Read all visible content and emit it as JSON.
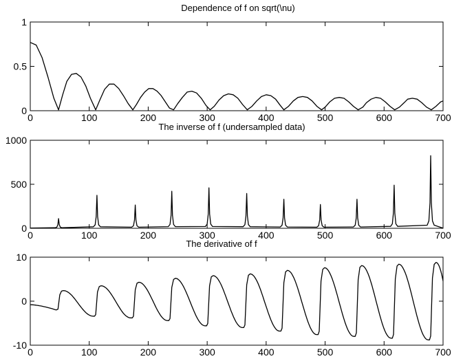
{
  "chart_data": [
    {
      "type": "line",
      "title": "Dependence of f on sqrt(\\nu)",
      "xlabel": "",
      "ylabel": "",
      "xlim": [
        0,
        700
      ],
      "ylim": [
        0,
        1
      ],
      "xticks": [
        0,
        100,
        200,
        300,
        400,
        500,
        600,
        700
      ],
      "yticks": [
        0,
        0.5,
        1
      ],
      "x_tick_labels": [
        "0",
        "100",
        "200",
        "300",
        "400",
        "500",
        "600",
        "700"
      ],
      "y_tick_labels": [
        "0",
        "0.5",
        "1"
      ],
      "grid": false,
      "series": [
        {
          "x": [
            0,
            10,
            20,
            30,
            40,
            48,
            55,
            62,
            70,
            78,
            86,
            94,
            102,
            111,
            118,
            126,
            134,
            142,
            150,
            158,
            166,
            174,
            180,
            187,
            194,
            201,
            208,
            215,
            222,
            229,
            236,
            243,
            250,
            258,
            266,
            274,
            282,
            290,
            298,
            305,
            312,
            320,
            328,
            336,
            344,
            352,
            360,
            368,
            376,
            384,
            392,
            400,
            408,
            416,
            424,
            430,
            438,
            446,
            454,
            462,
            470,
            478,
            486,
            494,
            500,
            508,
            516,
            524,
            532,
            540,
            548,
            556,
            564,
            570,
            578,
            586,
            594,
            602,
            610,
            618,
            626,
            634,
            640,
            648,
            656,
            664,
            672,
            680,
            688,
            696,
            700
          ],
          "y": [
            0.77,
            0.74,
            0.6,
            0.38,
            0.14,
            0.01,
            0.18,
            0.33,
            0.41,
            0.42,
            0.38,
            0.28,
            0.14,
            0.01,
            0.12,
            0.24,
            0.3,
            0.3,
            0.25,
            0.17,
            0.08,
            0.01,
            0.07,
            0.15,
            0.21,
            0.25,
            0.25,
            0.22,
            0.17,
            0.1,
            0.03,
            0.01,
            0.08,
            0.15,
            0.21,
            0.22,
            0.2,
            0.14,
            0.06,
            0.01,
            0.05,
            0.12,
            0.17,
            0.19,
            0.18,
            0.14,
            0.07,
            0.01,
            0.05,
            0.11,
            0.16,
            0.18,
            0.17,
            0.13,
            0.06,
            0.01,
            0.05,
            0.11,
            0.15,
            0.16,
            0.15,
            0.11,
            0.05,
            0.01,
            0.04,
            0.1,
            0.14,
            0.15,
            0.14,
            0.1,
            0.05,
            0.01,
            0.04,
            0.09,
            0.13,
            0.15,
            0.14,
            0.1,
            0.05,
            0.01,
            0.04,
            0.09,
            0.13,
            0.14,
            0.13,
            0.09,
            0.04,
            0.01,
            0.05,
            0.1,
            0.11
          ]
        }
      ]
    },
    {
      "type": "line",
      "title": "The inverse of f (undersampled data)",
      "xlabel": "",
      "ylabel": "",
      "xlim": [
        0,
        700
      ],
      "ylim": [
        0,
        1000
      ],
      "xticks": [
        0,
        100,
        200,
        300,
        400,
        500,
        600,
        700
      ],
      "yticks": [
        0,
        500,
        1000
      ],
      "x_tick_labels": [
        "0",
        "100",
        "200",
        "300",
        "400",
        "500",
        "600",
        "700"
      ],
      "y_tick_labels": [
        "0",
        "500",
        "1000"
      ],
      "grid": false,
      "series": [
        {
          "peaks": [
            {
              "x": 48,
              "y": 110
            },
            {
              "x": 113,
              "y": 375
            },
            {
              "x": 178,
              "y": 265
            },
            {
              "x": 240,
              "y": 420
            },
            {
              "x": 303,
              "y": 460
            },
            {
              "x": 367,
              "y": 395
            },
            {
              "x": 430,
              "y": 330
            },
            {
              "x": 492,
              "y": 270
            },
            {
              "x": 554,
              "y": 330
            },
            {
              "x": 617,
              "y": 490
            },
            {
              "x": 679,
              "y": 825
            }
          ],
          "baseline": 2
        }
      ]
    },
    {
      "type": "line",
      "title": "The derivative of f",
      "xlabel": "",
      "ylabel": "",
      "xlim": [
        0,
        700
      ],
      "ylim": [
        -10,
        10
      ],
      "xticks": [
        0,
        100,
        200,
        300,
        400,
        500,
        600,
        700
      ],
      "yticks": [
        -10,
        0,
        10
      ],
      "x_tick_labels": [
        "0",
        "100",
        "200",
        "300",
        "400",
        "500",
        "600",
        "700"
      ],
      "y_tick_labels": [
        "-10",
        "0",
        "10"
      ],
      "grid": false,
      "series": [
        {
          "cycles": [
            {
              "start": 0,
              "reset": 48,
              "low_start": -0.8,
              "low": -2.0,
              "high": 2.4
            },
            {
              "reset": 112,
              "low": -3.4,
              "high": 3.5
            },
            {
              "reset": 176,
              "low": -3.8,
              "high": 4.3
            },
            {
              "reset": 238,
              "low": -4.4,
              "high": 5.2
            },
            {
              "reset": 302,
              "low": -5.6,
              "high": 5.8
            },
            {
              "reset": 365,
              "low": -6.0,
              "high": 6.2
            },
            {
              "reset": 428,
              "low": -6.8,
              "high": 7.0
            },
            {
              "reset": 491,
              "low": -7.6,
              "high": 7.6
            },
            {
              "reset": 554,
              "low": -8.0,
              "high": 8.1
            },
            {
              "reset": 617,
              "low": -8.4,
              "high": 8.4
            },
            {
              "reset": 680,
              "low": -8.8,
              "high": 8.8
            },
            {
              "end": 700,
              "end_value": 4.6
            }
          ]
        }
      ]
    }
  ]
}
